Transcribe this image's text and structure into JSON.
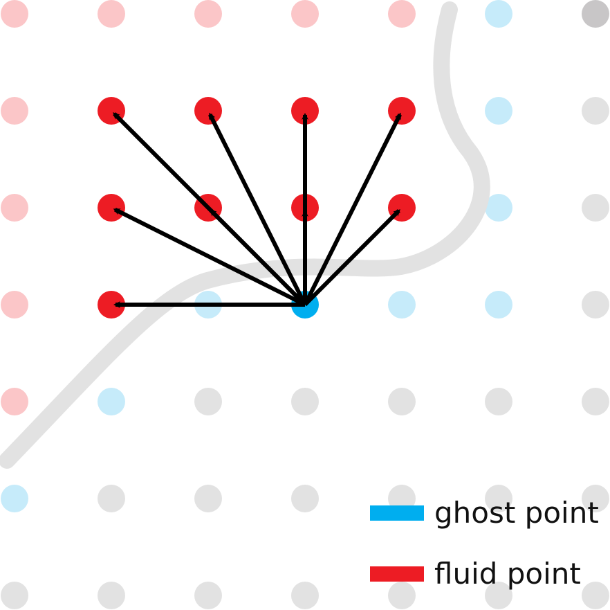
{
  "legend": {
    "ghost_label": "ghost point",
    "fluid_label": "fluid point"
  },
  "colors": {
    "ghost": "#00aeef",
    "fluid": "#ed1c24",
    "ghost_faded": "#c6ebfa",
    "fluid_faded": "#fbc6c8",
    "solid_faded": "#e2e2e2",
    "solid_dark": "#c8c6c7",
    "boundary": "#e2e2e2",
    "arrow": "#000000"
  },
  "grid": {
    "rows": [
      [
        "fluid_faded",
        "fluid_faded",
        "fluid_faded",
        "fluid_faded",
        "fluid_faded",
        "ghost_faded",
        "solid_dark"
      ],
      [
        "fluid_faded",
        "fluid",
        "fluid",
        "fluid",
        "fluid",
        "ghost_faded",
        "solid_faded"
      ],
      [
        "fluid_faded",
        "fluid",
        "fluid",
        "fluid",
        "fluid",
        "ghost_faded",
        "solid_faded"
      ],
      [
        "fluid_faded",
        "fluid",
        "ghost_faded",
        "ghost",
        "ghost_faded",
        "ghost_faded",
        "solid_faded"
      ],
      [
        "fluid_faded",
        "ghost_faded",
        "solid_faded",
        "solid_faded",
        "solid_faded",
        "solid_faded",
        "solid_faded"
      ],
      [
        "ghost_faded",
        "solid_faded",
        "solid_faded",
        "solid_faded",
        "solid_faded",
        "solid_faded",
        "solid_faded"
      ],
      [
        "solid_faded",
        "solid_faded",
        "solid_faded",
        "solid_faded",
        "solid_faded",
        "solid_faded",
        "solid_faded"
      ]
    ]
  },
  "stencil": {
    "source": [
      3,
      3
    ],
    "targets": [
      [
        1,
        1
      ],
      [
        1,
        2
      ],
      [
        1,
        3
      ],
      [
        1,
        4
      ],
      [
        2,
        1
      ],
      [
        2,
        2
      ],
      [
        2,
        3
      ],
      [
        2,
        4
      ],
      [
        3,
        1
      ]
    ]
  }
}
